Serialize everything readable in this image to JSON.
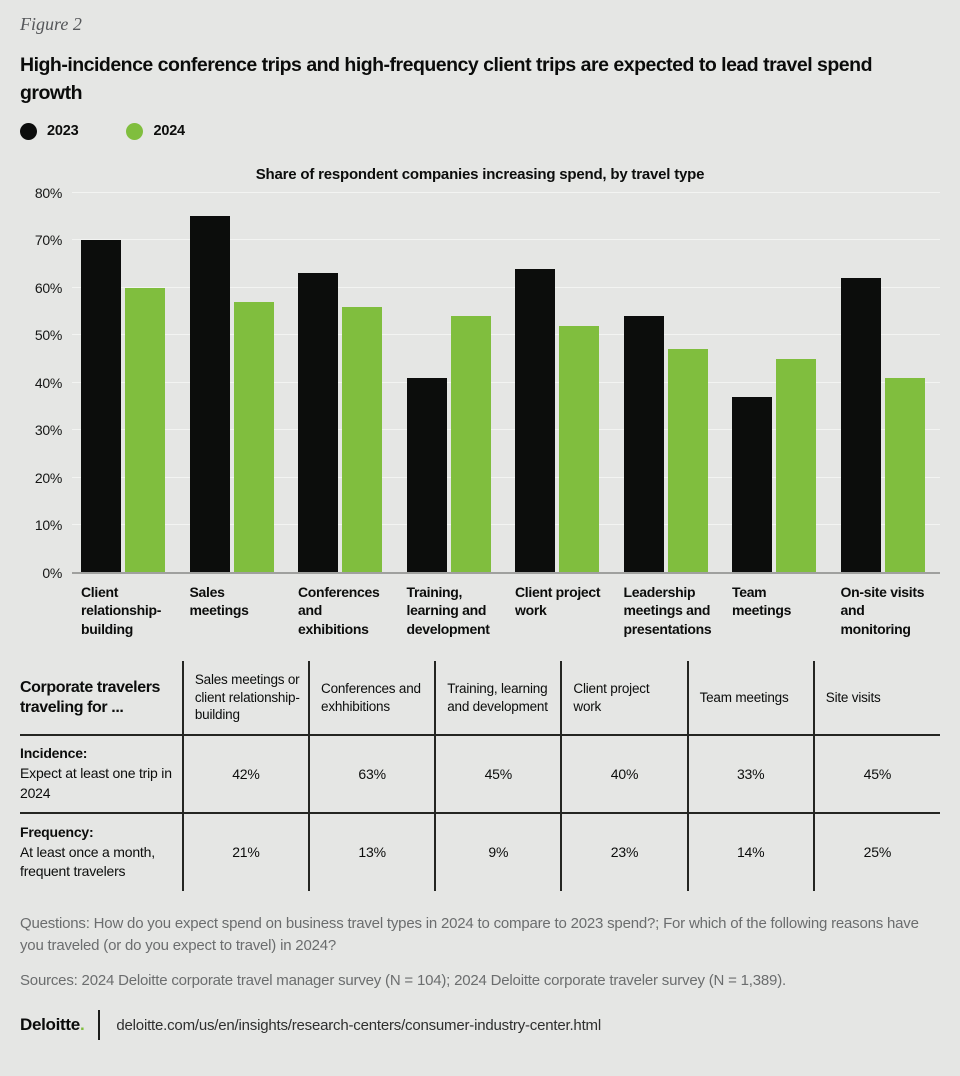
{
  "figure_label": "Figure 2",
  "title": "High-incidence conference trips and high-frequency client trips are expected to lead travel spend growth",
  "legend": [
    {
      "label": "2023",
      "color": "#0c0d0c"
    },
    {
      "label": "2024",
      "color": "#80be3e"
    }
  ],
  "chart_data": {
    "type": "bar",
    "title": "Share of respondent companies increasing spend, by travel type",
    "categories": [
      "Client relationship-building",
      "Sales meetings",
      "Conferences and exhibitions",
      "Training, learning and development",
      "Client project work",
      "Leadership meetings and presentations",
      "Team meetings",
      "On-site visits and monitoring"
    ],
    "series": [
      {
        "name": "2023",
        "color": "#0c0d0c",
        "values": [
          70,
          75,
          63,
          41,
          64,
          54,
          37,
          62
        ]
      },
      {
        "name": "2024",
        "color": "#80be3e",
        "values": [
          60,
          57,
          56,
          54,
          52,
          47,
          45,
          41
        ]
      }
    ],
    "ylim": [
      0,
      80
    ],
    "yticks": [
      "0%",
      "10%",
      "20%",
      "30%",
      "40%",
      "50%",
      "60%",
      "70%",
      "80%"
    ],
    "grid": true,
    "legend_position": "top-left",
    "xlabel": "",
    "ylabel": ""
  },
  "table": {
    "corner_header": "Corporate travelers traveling for ...",
    "columns": [
      "Sales meetings or client relationship-building",
      "Conferences and exhhibitions",
      "Training, learning and development",
      "Client project work",
      "Team meetings",
      "Site visits"
    ],
    "rows": [
      {
        "label_lead": "Incidence:",
        "label_rest": "Expect at least one trip in 2024",
        "values": [
          "42%",
          "63%",
          "45%",
          "40%",
          "33%",
          "45%"
        ]
      },
      {
        "label_lead": "Frequency:",
        "label_rest": "At least once a month, frequent travelers",
        "values": [
          "21%",
          "13%",
          "9%",
          "23%",
          "14%",
          "25%"
        ]
      }
    ]
  },
  "footnotes": {
    "questions": "Questions: How do you expect spend on business travel types in 2024 to compare to 2023 spend?; For which of the following reasons have you traveled (or do you expect to travel) in 2024?",
    "sources": "Sources: 2024 Deloitte corporate travel manager survey (N = 104); 2024 Deloitte corporate traveler survey (N = 1,389)."
  },
  "footer": {
    "brand": "Deloitte",
    "brand_dot": ".",
    "url": "deloitte.com/us/en/insights/research-centers/consumer-industry-center.html"
  }
}
